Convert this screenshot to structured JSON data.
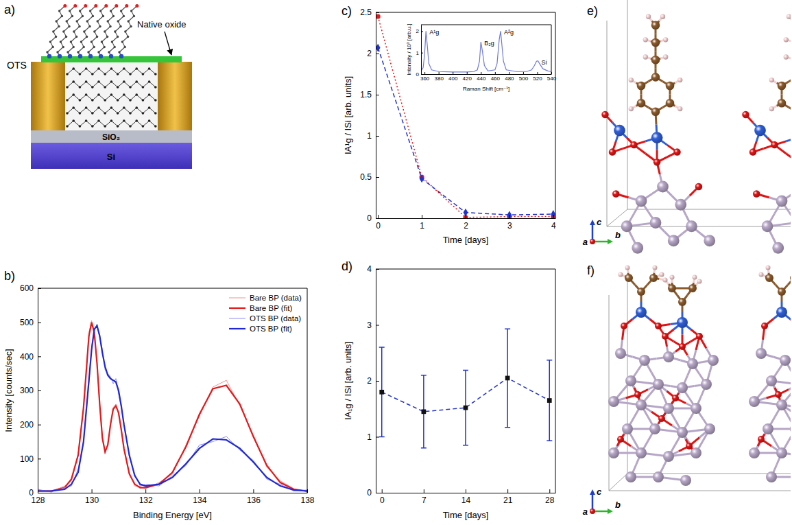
{
  "chart_data": [
    {
      "panel": "b)",
      "type": "line",
      "x": [
        128,
        128.5,
        129,
        129.25,
        129.5,
        129.7,
        129.9,
        130,
        130.1,
        130.2,
        130.3,
        130.4,
        130.5,
        130.6,
        130.7,
        130.8,
        130.9,
        131,
        131.1,
        131.2,
        131.4,
        131.6,
        131.8,
        132,
        132.5,
        133,
        133.5,
        134,
        134.5,
        135,
        135.5,
        136,
        136.5,
        137,
        137.5,
        138
      ],
      "series": [
        {
          "name": "Bare BP (data)",
          "color": "#f3928f",
          "values": [
            8,
            3,
            20,
            35,
            115,
            245,
            470,
            505,
            465,
            385,
            255,
            165,
            115,
            145,
            195,
            250,
            260,
            230,
            190,
            125,
            60,
            20,
            18,
            12,
            30,
            55,
            140,
            225,
            310,
            330,
            255,
            170,
            75,
            35,
            12,
            2
          ]
        },
        {
          "name": "Bare BP (fit)",
          "color": "#e3191c",
          "values": [
            5,
            5,
            15,
            40,
            110,
            250,
            460,
            500,
            470,
            380,
            260,
            160,
            120,
            140,
            200,
            245,
            255,
            235,
            185,
            130,
            55,
            25,
            15,
            15,
            25,
            60,
            135,
            230,
            305,
            315,
            260,
            165,
            80,
            30,
            10,
            5
          ]
        },
        {
          "name": "OTS BP (data)",
          "color": "#8e8ef5",
          "values": [
            10,
            2,
            15,
            20,
            70,
            145,
            320,
            430,
            475,
            495,
            455,
            420,
            360,
            350,
            340,
            320,
            335,
            290,
            250,
            205,
            105,
            55,
            20,
            25,
            20,
            50,
            80,
            140,
            150,
            165,
            125,
            95,
            40,
            25,
            5,
            8
          ]
        },
        {
          "name": "OTS BP (fit)",
          "color": "#1f27d6",
          "values": [
            5,
            5,
            10,
            25,
            60,
            150,
            330,
            420,
            480,
            490,
            460,
            410,
            370,
            345,
            335,
            330,
            325,
            300,
            255,
            200,
            110,
            50,
            25,
            20,
            25,
            45,
            85,
            130,
            158,
            155,
            130,
            90,
            45,
            20,
            8,
            5
          ]
        }
      ],
      "xlim": [
        128,
        138
      ],
      "xticks": [
        128,
        130,
        132,
        134,
        136,
        138
      ],
      "ylim": [
        0,
        600
      ],
      "yticks": [
        0,
        100,
        200,
        300,
        400,
        500,
        600
      ],
      "xlabel": "Binding Energy [eV]",
      "ylabel": "Intensity [counts/sec]",
      "legend": "upper right"
    },
    {
      "panel": "c)",
      "type": "line",
      "x": [
        0,
        1,
        2,
        3,
        4
      ],
      "series": [
        {
          "color": "#e3191c",
          "values": [
            2.45,
            0.5,
            0.01,
            0.02,
            0.02
          ],
          "marker": "circle",
          "line_style": "dotted"
        },
        {
          "color": "#2233cc",
          "values": [
            2.07,
            0.48,
            0.07,
            0.04,
            0.05
          ],
          "marker": "diamond",
          "line_style": "dashed"
        }
      ],
      "xlim": [
        -0.05,
        4.05
      ],
      "xticks": [
        0,
        1,
        2,
        3,
        4
      ],
      "ylim": [
        0,
        2.5
      ],
      "yticks": [
        0,
        0.5,
        1,
        1.5,
        2,
        2.5
      ],
      "xlabel": "Time [days]",
      "ylabel": "IA¹g / ISi [arb. units]",
      "inset": {
        "type": "line",
        "x": [
          355,
          358,
          360,
          362,
          364,
          366,
          370,
          380,
          400,
          420,
          430,
          435,
          438,
          440,
          442,
          445,
          450,
          460,
          463,
          466,
          468,
          470,
          472,
          476,
          490,
          505,
          512,
          516,
          519,
          521,
          524,
          528,
          535,
          540
        ],
        "series": [
          {
            "color": "#6f7bd9",
            "values": [
              0.15,
              0.3,
              0.9,
              2.0,
              1.3,
              0.5,
              0.2,
              0.12,
              0.1,
              0.1,
              0.12,
              0.2,
              0.6,
              1.5,
              1.1,
              0.4,
              0.15,
              0.2,
              0.5,
              1.6,
              2.0,
              1.3,
              0.6,
              0.2,
              0.12,
              0.12,
              0.2,
              0.4,
              0.6,
              0.62,
              0.45,
              0.25,
              0.15,
              0.12
            ]
          }
        ],
        "xlim": [
          355,
          540
        ],
        "xticks": [
          360,
          380,
          400,
          420,
          440,
          460,
          480,
          500,
          520,
          540
        ],
        "ylim": [
          0,
          2.3
        ],
        "yticks": [
          0,
          1,
          2
        ],
        "xlabel": "Raman Shift [cm⁻¹]",
        "ylabel": "Intensity / 10³ [arb.u.]",
        "annotations": [
          {
            "text": "A¹g",
            "x": 362,
            "y": 2.0
          },
          {
            "text": "B₂g",
            "x": 440,
            "y": 1.5
          },
          {
            "text": "A²g",
            "x": 468,
            "y": 2.0
          },
          {
            "text": "Si",
            "x": 521,
            "y": 0.62
          }
        ]
      }
    },
    {
      "panel": "d)",
      "type": "line",
      "x": [
        0,
        7,
        14,
        21,
        28
      ],
      "series": [
        {
          "color": "#2233cc",
          "values": [
            1.8,
            1.45,
            1.52,
            2.05,
            1.65
          ],
          "errors": [
            0.8,
            0.65,
            0.67,
            0.88,
            0.72
          ],
          "marker": "square",
          "line_style": "dashed"
        }
      ],
      "xlim": [
        -1,
        29
      ],
      "xticks": [
        0,
        7,
        14,
        21,
        28
      ],
      "ylim": [
        0,
        4
      ],
      "yticks": [
        0,
        1,
        2,
        3,
        4
      ],
      "xlabel": "Time [days]",
      "ylabel": "IA₁g / ISi [arb. units]"
    }
  ],
  "diagrams": {
    "a": {
      "panel": "a)",
      "labels": {
        "ots": "OTS",
        "native_oxide": "Native oxide",
        "sio2": "SiO₂",
        "si": "Si"
      }
    },
    "e": {
      "panel": "e)",
      "axes": [
        "c",
        "b",
        "a"
      ]
    },
    "f": {
      "panel": "f)",
      "axes": [
        "c",
        "b",
        "a"
      ]
    }
  }
}
